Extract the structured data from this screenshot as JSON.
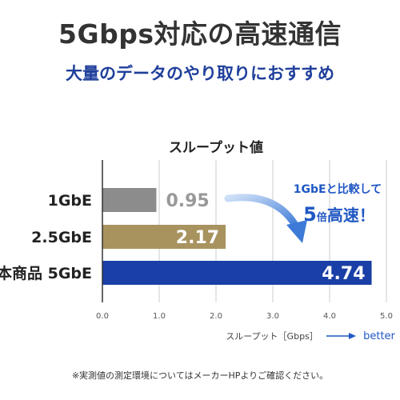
{
  "headline": "5Gbps対応の高速通信",
  "subheadline": "大量のデータのやり取りにおすすめ",
  "footnote": "※実測値の測定環境についてはメーカーHPよりご確認ください。",
  "chart_data": {
    "type": "bar",
    "orientation": "horizontal",
    "title": "スループット値",
    "xlabel": "スループット［Gbps］",
    "direction_label": "better",
    "categories": [
      "1GbE",
      "2.5GbE",
      "本商品 5GbE"
    ],
    "values": [
      0.95,
      2.17,
      4.74
    ],
    "value_labels": [
      "0.95",
      "2.17",
      "4.74"
    ],
    "xlim": [
      0.0,
      5.0
    ],
    "xticks": [
      "0.0",
      "1.0",
      "2.0",
      "3.0",
      "4.0",
      "5.0"
    ],
    "grid": true,
    "bar_colors": [
      "#8c8c8c",
      "#a8935f",
      "#1a3fa6"
    ],
    "label_colors": [
      "#999999",
      "#ffffff",
      "#ffffff"
    ],
    "annotation": {
      "line1": "1GbEと比較して",
      "line2_number": "5",
      "line2_small": "倍",
      "line2_rest": "高速！",
      "color": "#1f57c3"
    },
    "accent_color": "#1f57c3",
    "grid_color": "#cccccc"
  }
}
